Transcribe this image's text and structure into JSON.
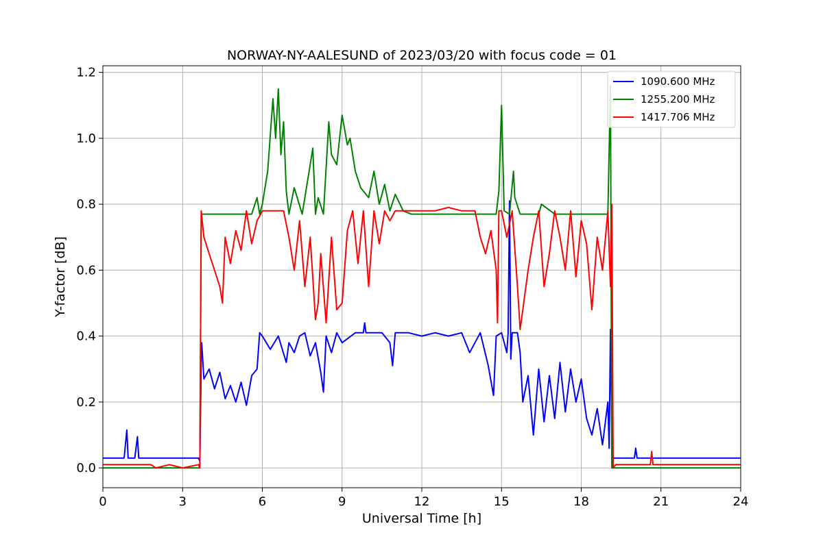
{
  "chart_data": {
    "type": "line",
    "title": "NORWAY-NY-AALESUND of 2023/03/20 with focus code = 01",
    "xlabel": "Universal Time [h]",
    "ylabel": "Y-factor [dB]",
    "xlim": [
      0,
      24
    ],
    "ylim": [
      -0.06,
      1.22
    ],
    "xticks": [
      0,
      3,
      6,
      9,
      12,
      15,
      18,
      21,
      24
    ],
    "xtick_labels": [
      "0",
      "3",
      "6",
      "9",
      "12",
      "15",
      "18",
      "21",
      "24"
    ],
    "yticks": [
      0.0,
      0.2,
      0.4,
      0.6,
      0.8,
      1.0,
      1.2
    ],
    "ytick_labels": [
      "0.0",
      "0.2",
      "0.4",
      "0.6",
      "0.8",
      "1.0",
      "1.2"
    ],
    "grid": true,
    "legend_position": "top-right",
    "series": [
      {
        "name": "1090.600 MHz",
        "color": "#0000ff",
        "x": [
          0,
          0.8,
          0.9,
          0.95,
          1.0,
          1.2,
          1.3,
          1.35,
          1.4,
          2.0,
          3.0,
          3.6,
          3.65,
          3.7,
          3.72,
          3.8,
          4.0,
          4.2,
          4.4,
          4.6,
          4.8,
          5.0,
          5.2,
          5.4,
          5.6,
          5.8,
          5.9,
          6.0,
          6.3,
          6.6,
          6.9,
          7.0,
          7.2,
          7.4,
          7.6,
          7.8,
          8.0,
          8.2,
          8.3,
          8.4,
          8.6,
          8.8,
          9.0,
          9.5,
          9.8,
          9.85,
          9.9,
          10.5,
          10.8,
          10.9,
          11.0,
          11.5,
          12.0,
          12.5,
          13.0,
          13.5,
          13.8,
          14.0,
          14.2,
          14.5,
          14.7,
          14.8,
          15.0,
          15.2,
          15.25,
          15.3,
          15.35,
          15.4,
          15.6,
          15.7,
          15.8,
          16.0,
          16.2,
          16.4,
          16.6,
          16.8,
          17.0,
          17.2,
          17.4,
          17.6,
          17.8,
          18.0,
          18.2,
          18.4,
          18.6,
          18.8,
          19.0,
          19.05,
          19.1,
          19.15,
          19.2,
          19.3,
          20.0,
          20.05,
          20.1,
          21.0,
          22.0,
          23.0,
          24.0
        ],
        "y": [
          0.03,
          0.03,
          0.115,
          0.03,
          0.03,
          0.03,
          0.095,
          0.03,
          0.03,
          0.03,
          0.03,
          0.03,
          0.02,
          0.33,
          0.38,
          0.27,
          0.3,
          0.24,
          0.29,
          0.21,
          0.25,
          0.2,
          0.26,
          0.19,
          0.28,
          0.3,
          0.41,
          0.4,
          0.36,
          0.4,
          0.32,
          0.38,
          0.35,
          0.4,
          0.41,
          0.34,
          0.38,
          0.29,
          0.23,
          0.4,
          0.35,
          0.41,
          0.38,
          0.41,
          0.41,
          0.44,
          0.41,
          0.41,
          0.38,
          0.31,
          0.41,
          0.41,
          0.4,
          0.41,
          0.4,
          0.41,
          0.35,
          0.38,
          0.41,
          0.31,
          0.22,
          0.4,
          0.41,
          0.35,
          0.41,
          0.81,
          0.33,
          0.41,
          0.41,
          0.35,
          0.2,
          0.28,
          0.1,
          0.3,
          0.14,
          0.28,
          0.15,
          0.32,
          0.17,
          0.3,
          0.2,
          0.27,
          0.15,
          0.1,
          0.18,
          0.07,
          0.2,
          0.06,
          0.42,
          0.1,
          0.03,
          0.03,
          0.03,
          0.06,
          0.03,
          0.03,
          0.03,
          0.03,
          0.03
        ]
      },
      {
        "name": "1255.200 MHz",
        "color": "#008000",
        "x": [
          0,
          3.0,
          3.6,
          3.65,
          3.7,
          4.0,
          5.0,
          5.6,
          5.8,
          5.9,
          6.0,
          6.2,
          6.4,
          6.5,
          6.6,
          6.7,
          6.8,
          6.9,
          7.0,
          7.2,
          7.5,
          7.8,
          7.9,
          8.0,
          8.1,
          8.3,
          8.5,
          8.6,
          8.8,
          9.0,
          9.2,
          9.3,
          9.5,
          9.7,
          10.0,
          10.2,
          10.4,
          10.6,
          10.8,
          11.0,
          11.3,
          11.6,
          12.0,
          13.0,
          14.0,
          14.6,
          14.8,
          14.9,
          15.0,
          15.1,
          15.3,
          15.45,
          15.5,
          15.7,
          16.0,
          16.4,
          16.5,
          17.0,
          18.0,
          19.0,
          19.1,
          19.15,
          19.2,
          19.3,
          20.0,
          21.0,
          22.0,
          23.0,
          24.0
        ],
        "y": [
          0.0,
          0.0,
          0.0,
          0.0,
          0.77,
          0.77,
          0.77,
          0.77,
          0.82,
          0.77,
          0.8,
          0.9,
          1.12,
          1.0,
          1.15,
          0.95,
          1.05,
          0.84,
          0.77,
          0.85,
          0.77,
          0.92,
          0.97,
          0.77,
          0.82,
          0.77,
          1.05,
          0.95,
          0.92,
          1.07,
          0.98,
          1.0,
          0.9,
          0.85,
          0.82,
          0.9,
          0.8,
          0.86,
          0.78,
          0.83,
          0.78,
          0.77,
          0.77,
          0.77,
          0.77,
          0.77,
          0.77,
          0.84,
          1.1,
          0.78,
          0.77,
          0.9,
          0.82,
          0.77,
          0.77,
          0.77,
          0.8,
          0.77,
          0.77,
          0.77,
          1.16,
          0.0,
          0.0,
          0.0,
          0.0,
          0.0,
          0.0,
          0.0,
          0.0
        ]
      },
      {
        "name": "1417.706 MHz",
        "color": "#ff0000",
        "x": [
          0,
          1.8,
          2.0,
          2.5,
          3.0,
          3.6,
          3.65,
          3.7,
          3.8,
          4.0,
          4.2,
          4.4,
          4.5,
          4.6,
          4.8,
          5.0,
          5.2,
          5.4,
          5.6,
          5.8,
          6.0,
          6.5,
          6.8,
          7.0,
          7.2,
          7.4,
          7.6,
          7.8,
          8.0,
          8.1,
          8.2,
          8.4,
          8.6,
          8.8,
          9.0,
          9.2,
          9.4,
          9.6,
          9.8,
          10.0,
          10.2,
          10.4,
          10.6,
          10.8,
          11.0,
          11.5,
          12.0,
          12.5,
          13.0,
          13.5,
          14.0,
          14.2,
          14.4,
          14.6,
          14.8,
          14.85,
          14.9,
          15.0,
          15.2,
          15.4,
          15.6,
          15.7,
          15.8,
          16.0,
          16.2,
          16.4,
          16.6,
          16.8,
          17.0,
          17.2,
          17.4,
          17.6,
          17.8,
          18.0,
          18.2,
          18.4,
          18.6,
          18.8,
          19.0,
          19.1,
          19.15,
          19.2,
          19.3,
          20.0,
          20.6,
          20.65,
          20.7,
          21.0,
          22.0,
          23.0,
          24.0
        ],
        "y": [
          0.01,
          0.01,
          0.0,
          0.01,
          0.0,
          0.01,
          0.0,
          0.78,
          0.7,
          0.65,
          0.6,
          0.55,
          0.5,
          0.7,
          0.62,
          0.72,
          0.66,
          0.78,
          0.68,
          0.75,
          0.78,
          0.78,
          0.78,
          0.7,
          0.6,
          0.75,
          0.55,
          0.7,
          0.45,
          0.5,
          0.65,
          0.44,
          0.7,
          0.48,
          0.5,
          0.72,
          0.78,
          0.62,
          0.78,
          0.55,
          0.78,
          0.68,
          0.78,
          0.75,
          0.78,
          0.78,
          0.78,
          0.78,
          0.79,
          0.78,
          0.78,
          0.7,
          0.65,
          0.72,
          0.6,
          0.44,
          0.78,
          0.78,
          0.7,
          0.78,
          0.55,
          0.42,
          0.48,
          0.6,
          0.7,
          0.78,
          0.55,
          0.65,
          0.78,
          0.7,
          0.6,
          0.78,
          0.58,
          0.75,
          0.68,
          0.48,
          0.7,
          0.6,
          0.78,
          0.55,
          0.8,
          0.0,
          0.01,
          0.01,
          0.01,
          0.05,
          0.01,
          0.01,
          0.01,
          0.01,
          0.01
        ]
      }
    ]
  }
}
